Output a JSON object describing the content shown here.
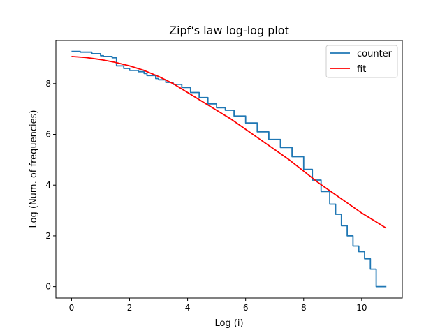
{
  "chart_data": {
    "type": "line",
    "title": "Zipf's law log-log plot",
    "xlabel": "Log (i)",
    "ylabel": "Log (Num. of frequencies)",
    "xlim": [
      -0.54,
      11.4
    ],
    "ylim": [
      -0.45,
      9.7
    ],
    "xticks": [
      0,
      2,
      4,
      6,
      8,
      10
    ],
    "yticks": [
      0,
      2,
      4,
      6,
      8
    ],
    "grid": false,
    "legend_position": "top-right",
    "series": [
      {
        "name": "counter",
        "color": "#1f77b4",
        "step": true,
        "points": [
          [
            0,
            9.27
          ],
          [
            0.3,
            9.24
          ],
          [
            0.7,
            9.18
          ],
          [
            1.0,
            9.1
          ],
          [
            1.1,
            9.07
          ],
          [
            1.4,
            9.02
          ],
          [
            1.55,
            8.7
          ],
          [
            1.8,
            8.6
          ],
          [
            2.0,
            8.52
          ],
          [
            2.3,
            8.47
          ],
          [
            2.5,
            8.4
          ],
          [
            2.6,
            8.32
          ],
          [
            2.9,
            8.2
          ],
          [
            3.0,
            8.15
          ],
          [
            3.25,
            8.05
          ],
          [
            3.5,
            7.97
          ],
          [
            3.8,
            7.85
          ],
          [
            4.1,
            7.65
          ],
          [
            4.4,
            7.45
          ],
          [
            4.7,
            7.2
          ],
          [
            5.0,
            7.05
          ],
          [
            5.3,
            6.95
          ],
          [
            5.6,
            6.72
          ],
          [
            6.0,
            6.45
          ],
          [
            6.4,
            6.1
          ],
          [
            6.8,
            5.8
          ],
          [
            7.2,
            5.48
          ],
          [
            7.6,
            5.12
          ],
          [
            8.0,
            4.62
          ],
          [
            8.3,
            4.2
          ],
          [
            8.6,
            3.75
          ],
          [
            8.9,
            3.25
          ],
          [
            9.1,
            2.85
          ],
          [
            9.3,
            2.4
          ],
          [
            9.5,
            2.0
          ],
          [
            9.7,
            1.6
          ],
          [
            9.9,
            1.38
          ],
          [
            10.1,
            1.1
          ],
          [
            10.3,
            0.69
          ],
          [
            10.5,
            0
          ],
          [
            10.85,
            0
          ]
        ]
      },
      {
        "name": "fit",
        "color": "#ff0000",
        "step": false,
        "points": [
          [
            0,
            9.07
          ],
          [
            0.5,
            9.03
          ],
          [
            1.0,
            8.95
          ],
          [
            1.5,
            8.84
          ],
          [
            2.0,
            8.7
          ],
          [
            2.5,
            8.52
          ],
          [
            3.0,
            8.28
          ],
          [
            3.5,
            8.0
          ],
          [
            4.0,
            7.65
          ],
          [
            4.5,
            7.3
          ],
          [
            5.0,
            6.95
          ],
          [
            5.5,
            6.6
          ],
          [
            6.0,
            6.2
          ],
          [
            6.5,
            5.8
          ],
          [
            7.0,
            5.4
          ],
          [
            7.5,
            5.0
          ],
          [
            8.0,
            4.55
          ],
          [
            8.5,
            4.1
          ],
          [
            9.0,
            3.7
          ],
          [
            9.5,
            3.3
          ],
          [
            10.0,
            2.9
          ],
          [
            10.5,
            2.55
          ],
          [
            10.85,
            2.3
          ]
        ]
      }
    ]
  }
}
